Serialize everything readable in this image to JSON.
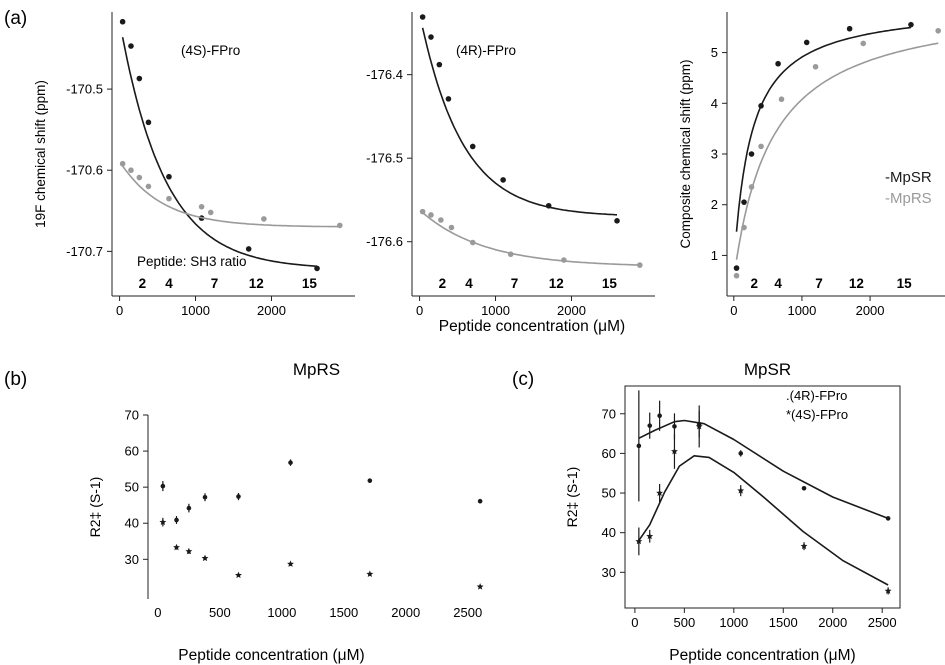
{
  "panel_labels": [
    "(a)",
    "(b)",
    "(c)"
  ],
  "shared_labels": {
    "a_xlabel": "Peptide concentration (μM)",
    "ratio_caption": "Peptide: SH3 ratio"
  },
  "colors": {
    "dark": "#1a1a1a",
    "gray": "#9a9a9a"
  },
  "chart_data": [
    {
      "id": "a1",
      "type": "scatter",
      "title": "(4S)-FPro",
      "xlabel": "",
      "ylabel": "19F chemical shift (ppm)",
      "xlim": [
        -100,
        3100
      ],
      "ylim": [
        -170.755,
        -170.405
      ],
      "yreversed": true,
      "xticks": [
        0,
        1000,
        2000
      ],
      "yticks": [
        -170.5,
        -170.6,
        -170.7
      ],
      "ytick_labels": [
        "-170.5",
        "-170.6",
        "-170.7"
      ],
      "ratio_labels": [
        {
          "text": "2",
          "x": 300
        },
        {
          "text": "4",
          "x": 650
        },
        {
          "text": "7",
          "x": 1250
        },
        {
          "text": "12",
          "x": 1800
        },
        {
          "text": "15",
          "x": 2500
        }
      ],
      "series": [
        {
          "color": "#1a1a1a",
          "fit": "exp",
          "fit_params": {
            "plateau": -170.722,
            "amp": 0.306,
            "k": 0.0017
          },
          "x": [
            40,
            150,
            260,
            380,
            650,
            1080,
            1700,
            2600
          ],
          "y": [
            -170.417,
            -170.447,
            -170.487,
            -170.541,
            -170.608,
            -170.659,
            -170.697,
            -170.721
          ]
        },
        {
          "color": "#9a9a9a",
          "fit": "exp",
          "fit_params": {
            "plateau": -170.67,
            "amp": 0.081,
            "k": 0.0018
          },
          "x": [
            40,
            150,
            260,
            380,
            650,
            1080,
            1200,
            1900,
            2900
          ],
          "y": [
            -170.592,
            -170.6,
            -170.609,
            -170.62,
            -170.635,
            -170.645,
            -170.652,
            -170.66,
            -170.668
          ]
        }
      ]
    },
    {
      "id": "a2",
      "type": "scatter",
      "title": "(4R)-FPro",
      "xlabel": "",
      "ylabel": "",
      "xlim": [
        -100,
        3100
      ],
      "ylim": [
        -176.665,
        -176.325
      ],
      "yreversed": true,
      "xticks": [
        0,
        1000,
        2000
      ],
      "yticks": [
        -176.4,
        -176.5,
        -176.6
      ],
      "ytick_labels": [
        "-176.4",
        "-176.5",
        "-176.6"
      ],
      "ratio_labels": [
        {
          "text": "2",
          "x": 300
        },
        {
          "text": "4",
          "x": 650
        },
        {
          "text": "7",
          "x": 1250
        },
        {
          "text": "12",
          "x": 1800
        },
        {
          "text": "15",
          "x": 2500
        }
      ],
      "series": [
        {
          "color": "#1a1a1a",
          "fit": "exp",
          "fit_params": {
            "plateau": -176.57,
            "amp": 0.243,
            "k": 0.0018
          },
          "x": [
            40,
            150,
            260,
            380,
            700,
            1100,
            1700,
            2600
          ],
          "y": [
            -176.331,
            -176.355,
            -176.388,
            -176.429,
            -176.486,
            -176.526,
            -176.557,
            -176.575
          ]
        },
        {
          "color": "#9a9a9a",
          "fit": "exp",
          "fit_params": {
            "plateau": -176.63,
            "amp": 0.068,
            "k": 0.0012
          },
          "x": [
            40,
            150,
            280,
            420,
            700,
            1200,
            1900,
            2900
          ],
          "y": [
            -176.564,
            -176.568,
            -176.574,
            -176.583,
            -176.601,
            -176.615,
            -176.622,
            -176.628
          ]
        }
      ]
    },
    {
      "id": "a3",
      "type": "scatter",
      "title": "",
      "xlabel": "",
      "ylabel": "Composite chemical shift (ppm)",
      "xlim": [
        -100,
        3100
      ],
      "ylim": [
        0.2,
        5.8
      ],
      "yreversed": false,
      "xticks": [
        0,
        1000,
        2000
      ],
      "yticks": [
        1,
        2,
        3,
        4,
        5
      ],
      "ytick_labels": [
        "1",
        "2",
        "3",
        "4",
        "5"
      ],
      "ratio_labels": [
        {
          "text": "2",
          "x": 300
        },
        {
          "text": "4",
          "x": 650
        },
        {
          "text": "7",
          "x": 1250
        },
        {
          "text": "12",
          "x": 1800
        },
        {
          "text": "15",
          "x": 2500
        }
      ],
      "legend": [
        {
          "text": "-MpSR",
          "color": "#1a1a1a"
        },
        {
          "text": "-MpRS",
          "color": "#9a9a9a"
        }
      ],
      "series": [
        {
          "color": "#1a1a1a",
          "fit": "binding",
          "fit_params": {
            "y0": 0.75,
            "span": 5.2,
            "kd": 250
          },
          "x": [
            40,
            150,
            260,
            400,
            650,
            1070,
            1700,
            2600
          ],
          "y": [
            0.75,
            2.05,
            3.0,
            3.95,
            4.78,
            5.2,
            5.47,
            5.55
          ]
        },
        {
          "color": "#9a9a9a",
          "fit": "binding",
          "fit_params": {
            "y0": 0.55,
            "span": 5.5,
            "kd": 560
          },
          "x": [
            40,
            150,
            260,
            400,
            700,
            1200,
            1900,
            3000
          ],
          "y": [
            0.6,
            1.55,
            2.35,
            3.15,
            4.08,
            4.72,
            5.18,
            5.43
          ]
        }
      ]
    },
    {
      "id": "b",
      "type": "scatter",
      "title": "MpRS",
      "xlabel": "Peptide concentration (μM)",
      "ylabel": "R2‡ (S-1)",
      "xlim": [
        -80,
        2720
      ],
      "ylim": [
        19,
        70
      ],
      "xticks": [
        0,
        500,
        1000,
        1500,
        2000,
        2500
      ],
      "yticks": [
        30,
        40,
        50,
        60,
        70
      ],
      "series": [
        {
          "marker": "dot",
          "x": [
            40,
            150,
            250,
            380,
            650,
            1070,
            1710,
            2600
          ],
          "y": [
            50.3,
            40.9,
            44.2,
            47.2,
            47.4,
            56.8,
            51.8,
            46.1
          ],
          "err": [
            1.4,
            1.1,
            1.2,
            1.1,
            1.0,
            0.9,
            0.6,
            0.4
          ]
        },
        {
          "marker": "star",
          "x": [
            40,
            150,
            250,
            380,
            650,
            1070,
            1710,
            2600
          ],
          "y": [
            40.3,
            33.3,
            32.2,
            30.3,
            25.6,
            28.7,
            25.9,
            22.4
          ],
          "err": [
            1.2,
            0.6,
            0.7,
            0.5,
            0.4,
            0.5,
            0.4,
            0.4
          ]
        }
      ]
    },
    {
      "id": "c",
      "type": "scatter",
      "title": "MpSR",
      "xlabel": "Peptide concentration (μM)",
      "ylabel": "R2‡ (S-1)",
      "xlim": [
        -100,
        2680
      ],
      "ylim": [
        21,
        77
      ],
      "xticks": [
        0,
        500,
        1000,
        1500,
        2000,
        2500
      ],
      "yticks": [
        30,
        40,
        50,
        60,
        70
      ],
      "legend": [
        {
          "text": ".(4R)-FPro"
        },
        {
          "text": "*(4S)-FPro"
        }
      ],
      "series": [
        {
          "marker": "dot",
          "x": [
            40,
            150,
            250,
            400,
            650,
            1070,
            1710,
            2560
          ],
          "y": [
            61.9,
            67.0,
            69.5,
            66.8,
            67.4,
            60.0,
            51.2,
            43.6
          ],
          "err": [
            14.0,
            3.3,
            3.8,
            3.3,
            3.3,
            0.8,
            0.4,
            0.3
          ],
          "curve_x": [
            40,
            200,
            400,
            500,
            700,
            1000,
            1500,
            2000,
            2560
          ],
          "curve_y": [
            63.8,
            65.8,
            68.0,
            68.3,
            67.5,
            63.5,
            55.5,
            49.0,
            43.6
          ]
        },
        {
          "marker": "star",
          "x": [
            40,
            150,
            250,
            400,
            650,
            1070,
            1710,
            2560
          ],
          "y": [
            37.8,
            39.1,
            50.0,
            60.5,
            66.8,
            50.6,
            36.6,
            25.3
          ],
          "err": [
            3.5,
            1.6,
            2.3,
            4.4,
            5.3,
            1.4,
            1.0,
            0.9
          ],
          "curve_x": [
            40,
            150,
            300,
            450,
            600,
            750,
            1000,
            1300,
            1700,
            2100,
            2560
          ],
          "curve_y": [
            38.0,
            42.0,
            50.2,
            56.8,
            59.4,
            59.0,
            55.2,
            49.0,
            40.3,
            33.0,
            26.8
          ]
        }
      ]
    }
  ]
}
